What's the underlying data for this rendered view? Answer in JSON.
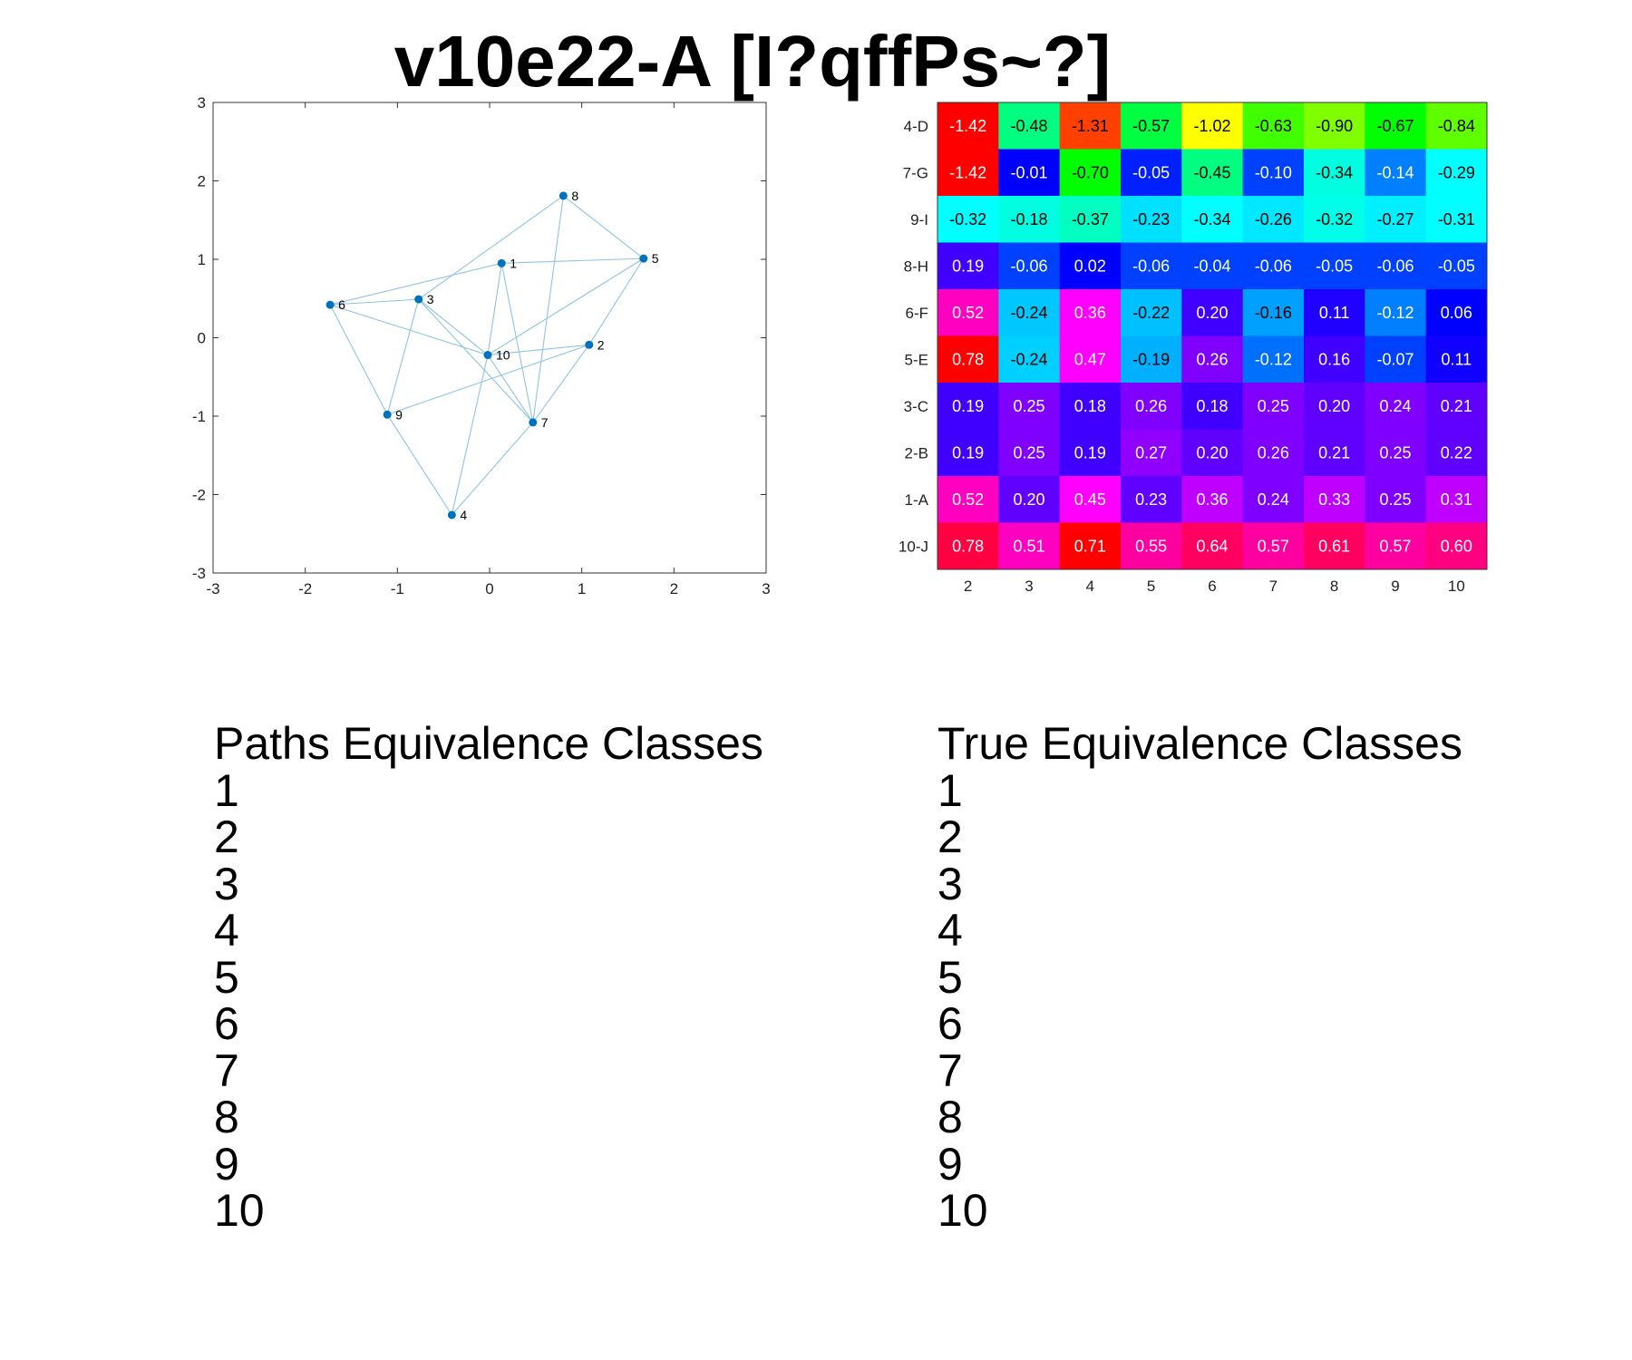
{
  "title": "v10e22-A [I?qffPs~?]",
  "chart_data": [
    {
      "type": "scatter",
      "subtype": "network-graph",
      "xlim": [
        -3,
        3
      ],
      "ylim": [
        -3,
        3
      ],
      "xticks": [
        "-3",
        "-2",
        "-1",
        "0",
        "1",
        "2",
        "3"
      ],
      "yticks": [
        "-3",
        "-2",
        "-1",
        "0",
        "1",
        "2",
        "3"
      ],
      "node_color": "#0072bd",
      "edge_color": "#8ec3e6",
      "nodes": [
        {
          "label": "1",
          "x": 0.13,
          "y": 0.95
        },
        {
          "label": "2",
          "x": 1.08,
          "y": -0.09
        },
        {
          "label": "3",
          "x": -0.77,
          "y": 0.49
        },
        {
          "label": "4",
          "x": -0.41,
          "y": -2.26
        },
        {
          "label": "5",
          "x": 1.67,
          "y": 1.01
        },
        {
          "label": "6",
          "x": -1.73,
          "y": 0.42
        },
        {
          "label": "7",
          "x": 0.47,
          "y": -1.08
        },
        {
          "label": "8",
          "x": 0.8,
          "y": 1.81
        },
        {
          "label": "9",
          "x": -1.11,
          "y": -0.98
        },
        {
          "label": "10",
          "x": -0.02,
          "y": -0.22
        }
      ],
      "edges": [
        [
          "1",
          "5"
        ],
        [
          "1",
          "6"
        ],
        [
          "1",
          "7"
        ],
        [
          "3",
          "8"
        ],
        [
          "8",
          "5"
        ],
        [
          "8",
          "7"
        ],
        [
          "5",
          "2"
        ],
        [
          "5",
          "10"
        ],
        [
          "6",
          "3"
        ],
        [
          "6",
          "10"
        ],
        [
          "3",
          "9"
        ],
        [
          "3",
          "7"
        ],
        [
          "10",
          "2"
        ],
        [
          "2",
          "9"
        ],
        [
          "6",
          "9"
        ],
        [
          "9",
          "4"
        ],
        [
          "4",
          "10"
        ],
        [
          "4",
          "7"
        ],
        [
          "3",
          "10"
        ],
        [
          "7",
          "10"
        ],
        [
          "1",
          "10"
        ],
        [
          "2",
          "7"
        ]
      ]
    },
    {
      "type": "heatmap",
      "columns": [
        "2",
        "3",
        "4",
        "5",
        "6",
        "7",
        "8",
        "9",
        "10"
      ],
      "rows": [
        "4-D",
        "7-G",
        "9-I",
        "8-H",
        "6-F",
        "5-E",
        "3-C",
        "2-B",
        "1-A",
        "10-J"
      ],
      "values": [
        [
          -1.42,
          -0.48,
          -1.31,
          -0.57,
          -1.02,
          -0.63,
          -0.9,
          -0.67,
          -0.84
        ],
        [
          -1.42,
          -0.01,
          -0.7,
          -0.05,
          -0.45,
          -0.1,
          -0.34,
          -0.14,
          -0.29
        ],
        [
          -0.32,
          -0.18,
          -0.37,
          -0.23,
          -0.34,
          -0.26,
          -0.32,
          -0.27,
          -0.31
        ],
        [
          0.19,
          -0.06,
          0.02,
          -0.06,
          -0.04,
          -0.06,
          -0.05,
          -0.06,
          -0.05
        ],
        [
          0.52,
          -0.24,
          0.36,
          -0.22,
          0.2,
          -0.16,
          0.11,
          -0.12,
          0.06
        ],
        [
          0.78,
          -0.24,
          0.47,
          -0.19,
          0.26,
          -0.12,
          0.16,
          -0.07,
          0.11
        ],
        [
          0.19,
          0.25,
          0.18,
          0.26,
          0.18,
          0.25,
          0.2,
          0.24,
          0.21
        ],
        [
          0.19,
          0.25,
          0.19,
          0.27,
          0.2,
          0.26,
          0.21,
          0.25,
          0.22
        ],
        [
          0.52,
          0.2,
          0.45,
          0.23,
          0.36,
          0.24,
          0.33,
          0.25,
          0.31
        ],
        [
          0.78,
          0.51,
          0.71,
          0.55,
          0.64,
          0.57,
          0.61,
          0.57,
          0.6
        ]
      ],
      "colors": [
        [
          "#ff0000",
          "#00ff80",
          "#ff4000",
          "#00ff40",
          "#ffff00",
          "#40ff00",
          "#80ff00",
          "#00ff00",
          "#60ff00"
        ],
        [
          "#ff0000",
          "#0000ff",
          "#00ff00",
          "#0020ff",
          "#00ff80",
          "#0040ff",
          "#00ffe0",
          "#0080ff",
          "#00ffff"
        ],
        [
          "#00ffff",
          "#00ffe0",
          "#00ffc0",
          "#00e0ff",
          "#00ffff",
          "#00e8ff",
          "#00ffe8",
          "#00f0ff",
          "#00ffff"
        ],
        [
          "#4000ff",
          "#0040ff",
          "#0000ff",
          "#0040ff",
          "#0040ff",
          "#0040ff",
          "#0040ff",
          "#0040ff",
          "#0040ff"
        ],
        [
          "#ff00c0",
          "#00c8ff",
          "#ff00ff",
          "#00c0ff",
          "#4000ff",
          "#00a0ff",
          "#2000ff",
          "#0080ff",
          "#0000ff"
        ],
        [
          "#ff0000",
          "#00d0ff",
          "#ff00ff",
          "#00b0ff",
          "#8000ff",
          "#0070ff",
          "#4000ff",
          "#0040ff",
          "#1000ff"
        ],
        [
          "#4000ff",
          "#8000ff",
          "#4000ff",
          "#8000ff",
          "#4000ff",
          "#8000ff",
          "#6000ff",
          "#8000ff",
          "#6000ff"
        ],
        [
          "#4000ff",
          "#8000ff",
          "#4000ff",
          "#9000ff",
          "#6000ff",
          "#8000ff",
          "#6000ff",
          "#8000ff",
          "#6000ff"
        ],
        [
          "#ff00c0",
          "#6000ff",
          "#ff00ff",
          "#6000ff",
          "#c000ff",
          "#8000ff",
          "#c000ff",
          "#8000ff",
          "#c000ff"
        ],
        [
          "#ff0040",
          "#ff00c0",
          "#ff0000",
          "#ff00a0",
          "#ff0060",
          "#ff00a0",
          "#ff0060",
          "#ff00a0",
          "#ff0080"
        ]
      ]
    }
  ],
  "paths_classes": {
    "heading": "Paths Equivalence Classes",
    "items": [
      "1",
      "2",
      "3",
      "4",
      "5",
      "6",
      "7",
      "8",
      "9",
      "10"
    ]
  },
  "true_classes": {
    "heading": "True Equivalence Classes",
    "items": [
      "1",
      "2",
      "3",
      "4",
      "5",
      "6",
      "7",
      "8",
      "9",
      "10"
    ]
  }
}
